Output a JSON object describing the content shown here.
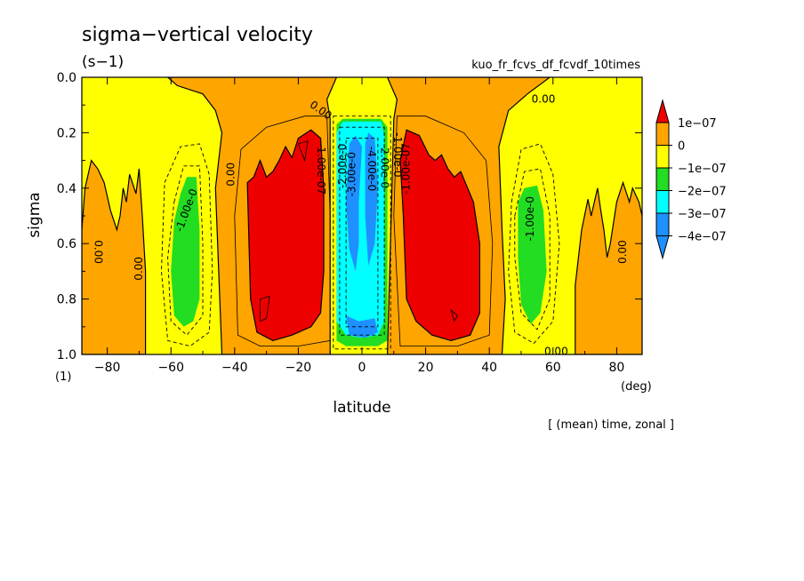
{
  "title": "sigma−vertical velocity",
  "units": "(s−1)",
  "experiment": "kuo_fr_fcvs_df_fcvdf_10times",
  "footer": "[ (mean) time, zonal ]",
  "colors": {
    "red": "#ee0000",
    "orange": "#ffa500",
    "yellow": "#ffff00",
    "green": "#22dd22",
    "cyan": "#00ffff",
    "blue": "#1e90ff"
  },
  "chart_data": {
    "type": "heatmap",
    "subtype": "filled-contour",
    "xlabel": "latitude",
    "xunit": "(deg)",
    "ylabel": "sigma",
    "yunit": "(1)",
    "xlim": [
      -88,
      88
    ],
    "ylim": [
      0.0,
      1.0
    ],
    "y_inverted": true,
    "xticks": [
      -80,
      -60,
      -40,
      -20,
      0,
      20,
      40,
      60,
      80
    ],
    "xtick_labels": [
      "−80",
      "−60",
      "−40",
      "−20",
      "0",
      "20",
      "40",
      "60",
      "80"
    ],
    "yticks": [
      0.0,
      0.2,
      0.4,
      0.6,
      0.8,
      1.0
    ],
    "ytick_labels": [
      "0.0",
      "0.2",
      "0.4",
      "0.6",
      "0.8",
      "1.0"
    ],
    "legend": {
      "placement": "right",
      "levels": [
        {
          "label": "1e−07",
          "color": "#ee0000"
        },
        {
          "label": "0",
          "color": "#ffa500"
        },
        {
          "label": "−1e−07",
          "color": "#ffff00"
        },
        {
          "label": "−2e−07",
          "color": "#22dd22"
        },
        {
          "label": "−3e−07",
          "color": "#00ffff"
        },
        {
          "label": "−4e−07",
          "color": "#1e90ff"
        }
      ]
    },
    "contour_labels": [
      {
        "text": "0.00",
        "lat": -13,
        "sigma": 0.12,
        "angle": 35
      },
      {
        "text": "0.00",
        "lat": 57,
        "sigma": 0.08,
        "angle": 0
      },
      {
        "text": "0.00",
        "lat": -41,
        "sigma": 0.35,
        "angle": -90
      },
      {
        "text": "0.00",
        "lat": -70,
        "sigma": 0.69,
        "angle": -90
      },
      {
        "text": "0.00",
        "lat": -83,
        "sigma": 0.63,
        "angle": 90
      },
      {
        "text": "0.00",
        "lat": 82,
        "sigma": 0.63,
        "angle": -90
      },
      {
        "text": "0.00",
        "lat": 61,
        "sigma": 0.99,
        "angle": 0
      },
      {
        "text": "-1.00e-0",
        "lat": -55,
        "sigma": 0.48,
        "angle": -70
      },
      {
        "text": "-1.00e-0",
        "lat": 53,
        "sigma": 0.51,
        "angle": -90
      },
      {
        "text": "-1.00e-07",
        "lat": -13,
        "sigma": 0.33,
        "angle": 90
      },
      {
        "text": "-1.00e-0",
        "lat": 11,
        "sigma": 0.28,
        "angle": 90
      },
      {
        "text": "-1.00e-07",
        "lat": 14,
        "sigma": 0.33,
        "angle": -90
      },
      {
        "text": "-2.00e-0",
        "lat": -6,
        "sigma": 0.32,
        "angle": -90
      },
      {
        "text": "-3.00e-0",
        "lat": -3,
        "sigma": 0.35,
        "angle": -90
      },
      {
        "text": "-4.00e-0",
        "lat": 3,
        "sigma": 0.33,
        "angle": 90
      },
      {
        "text": "-2.00e-0",
        "lat": 7,
        "sigma": 0.32,
        "angle": 90
      }
    ],
    "regions": [
      {
        "value_range": "0 to 1e-07",
        "lat_range": [
          -88,
          -69
        ],
        "sigma_range": [
          0.33,
          1.0
        ],
        "note": "polar orange band"
      },
      {
        "value_range": "0 to 1e-07",
        "lat_range": [
          -42,
          -8
        ],
        "sigma_range": [
          0.0,
          1.0
        ],
        "note": "subtropical orange band"
      },
      {
        "value_range": "0 to 1e-07",
        "lat_range": [
          8,
          44
        ],
        "sigma_range": [
          0.0,
          1.0
        ],
        "note": "subtropical orange band"
      },
      {
        "value_range": "0 to 1e-07",
        "lat_range": [
          67,
          88
        ],
        "sigma_range": [
          0.35,
          1.0
        ],
        "note": "polar orange band"
      },
      {
        "value_range": ">1e-07",
        "lat_range": [
          -36,
          -12
        ],
        "sigma_range": [
          0.2,
          0.95
        ],
        "note": "southern max"
      },
      {
        "value_range": ">1e-07",
        "lat_range": [
          12,
          38
        ],
        "sigma_range": [
          0.2,
          0.95
        ],
        "note": "northern max"
      },
      {
        "value_range": "-2e-07 to -1e-07",
        "lat_range": [
          -60,
          -51
        ],
        "sigma_range": [
          0.35,
          0.9
        ]
      },
      {
        "value_range": "-2e-07 to -1e-07",
        "lat_range": [
          49,
          58
        ],
        "sigma_range": [
          0.39,
          0.89
        ]
      },
      {
        "value_range": "-3e-07 to -2e-07",
        "lat_range": [
          -8,
          7
        ],
        "sigma_range": [
          0.16,
          0.94
        ],
        "note": "equatorial ascent"
      },
      {
        "value_range": "<-4e-07",
        "lat_range": [
          -5,
          5
        ],
        "sigma_range": [
          0.2,
          0.93
        ],
        "note": "equatorial ascent core"
      }
    ]
  }
}
